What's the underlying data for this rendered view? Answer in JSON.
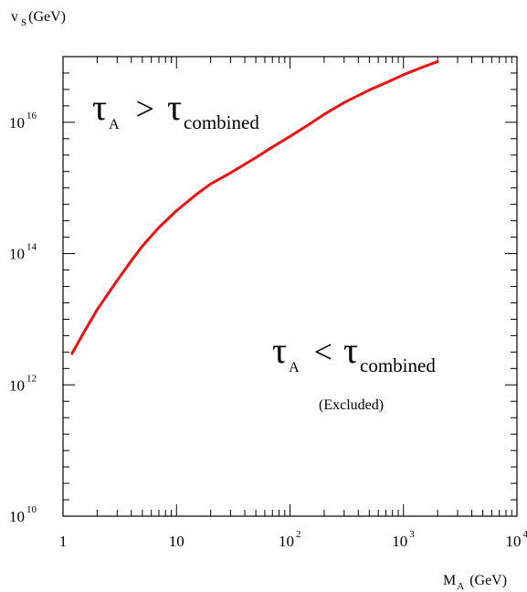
{
  "chart_data": {
    "type": "line",
    "title": "",
    "xlabel": {
      "main": "M",
      "sub": "A",
      "unit": "(GeV)"
    },
    "ylabel": {
      "main": "v",
      "sub": "S",
      "unit": "(GeV)"
    },
    "xscale": "log",
    "yscale": "log",
    "xlim": [
      1,
      10000
    ],
    "ylim": [
      10000000000.0,
      1e+17
    ],
    "x_ticks": [
      {
        "value": 1,
        "base": "1",
        "exp": ""
      },
      {
        "value": 10,
        "base": "10",
        "exp": ""
      },
      {
        "value": 100,
        "base": "10",
        "exp": "2"
      },
      {
        "value": 1000,
        "base": "10",
        "exp": "3"
      },
      {
        "value": 10000,
        "base": "10",
        "exp": "4"
      }
    ],
    "y_ticks": [
      {
        "value": 10000000000.0,
        "base": "10",
        "exp": "10"
      },
      {
        "value": 1000000000000.0,
        "base": "10",
        "exp": "12"
      },
      {
        "value": 100000000000000.0,
        "base": "10",
        "exp": "14"
      },
      {
        "value": 1e+16,
        "base": "10",
        "exp": "16"
      }
    ],
    "grid": false,
    "series": [
      {
        "color": "#ee1111",
        "x": [
          1.2,
          1.5,
          2,
          3,
          4,
          5,
          7,
          10,
          15,
          20,
          30,
          50,
          70,
          100,
          150,
          200,
          300,
          500,
          700,
          1000,
          1500,
          2000
        ],
        "y": [
          3000000000000.0,
          6000000000000.0,
          14000000000000.0,
          39000000000000.0,
          78000000000000.0,
          130000000000000.0,
          250000000000000.0,
          450000000000000.0,
          800000000000000.0,
          1150000000000000.0,
          1700000000000000.0,
          2900000000000000.0,
          4200000000000000.0,
          6100000000000000.0,
          9500000000000000.0,
          1.32e+16,
          2e+16,
          3.1e+16,
          4e+16,
          5.3e+16,
          7e+16,
          8.4e+16
        ]
      }
    ],
    "annotations": {
      "upper": {
        "tau": "τ",
        "sub": "A",
        "op": ">",
        "tau2": "τ",
        "sub2": "combined"
      },
      "lower": {
        "tau": "τ",
        "sub": "A",
        "op": "<",
        "tau2": "τ",
        "sub2": "combined",
        "note": "(Excluded)"
      }
    }
  }
}
